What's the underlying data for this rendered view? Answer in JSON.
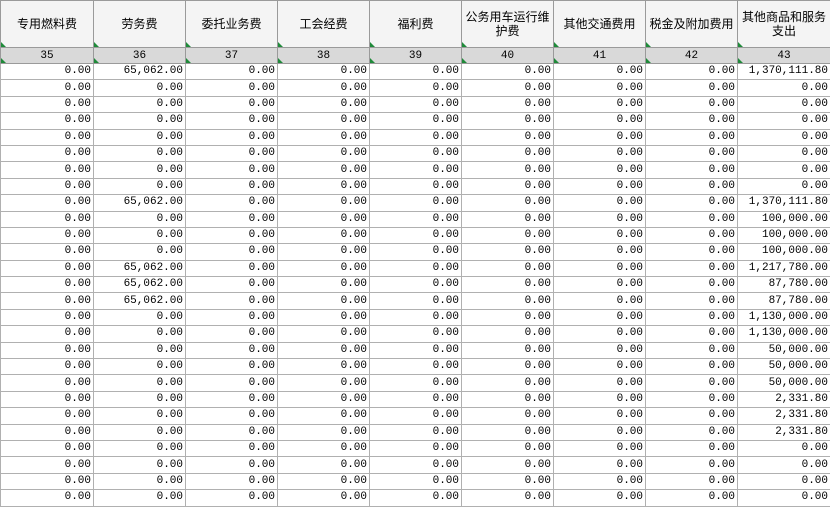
{
  "table": {
    "headers": [
      "专用燃料费",
      "劳务费",
      "委托业务费",
      "工会经费",
      "福利费",
      "公务用车运行维护费",
      "其他交通费用",
      "税金及附加费用",
      "其他商品和服务支出"
    ],
    "numbers": [
      "35",
      "36",
      "37",
      "38",
      "39",
      "40",
      "41",
      "42",
      "43"
    ],
    "rows": [
      [
        "0.00",
        "65,062.00",
        "0.00",
        "0.00",
        "0.00",
        "0.00",
        "0.00",
        "0.00",
        "1,370,111.80"
      ],
      [
        "0.00",
        "0.00",
        "0.00",
        "0.00",
        "0.00",
        "0.00",
        "0.00",
        "0.00",
        "0.00"
      ],
      [
        "0.00",
        "0.00",
        "0.00",
        "0.00",
        "0.00",
        "0.00",
        "0.00",
        "0.00",
        "0.00"
      ],
      [
        "0.00",
        "0.00",
        "0.00",
        "0.00",
        "0.00",
        "0.00",
        "0.00",
        "0.00",
        "0.00"
      ],
      [
        "0.00",
        "0.00",
        "0.00",
        "0.00",
        "0.00",
        "0.00",
        "0.00",
        "0.00",
        "0.00"
      ],
      [
        "0.00",
        "0.00",
        "0.00",
        "0.00",
        "0.00",
        "0.00",
        "0.00",
        "0.00",
        "0.00"
      ],
      [
        "0.00",
        "0.00",
        "0.00",
        "0.00",
        "0.00",
        "0.00",
        "0.00",
        "0.00",
        "0.00"
      ],
      [
        "0.00",
        "0.00",
        "0.00",
        "0.00",
        "0.00",
        "0.00",
        "0.00",
        "0.00",
        "0.00"
      ],
      [
        "0.00",
        "65,062.00",
        "0.00",
        "0.00",
        "0.00",
        "0.00",
        "0.00",
        "0.00",
        "1,370,111.80"
      ],
      [
        "0.00",
        "0.00",
        "0.00",
        "0.00",
        "0.00",
        "0.00",
        "0.00",
        "0.00",
        "100,000.00"
      ],
      [
        "0.00",
        "0.00",
        "0.00",
        "0.00",
        "0.00",
        "0.00",
        "0.00",
        "0.00",
        "100,000.00"
      ],
      [
        "0.00",
        "0.00",
        "0.00",
        "0.00",
        "0.00",
        "0.00",
        "0.00",
        "0.00",
        "100,000.00"
      ],
      [
        "0.00",
        "65,062.00",
        "0.00",
        "0.00",
        "0.00",
        "0.00",
        "0.00",
        "0.00",
        "1,217,780.00"
      ],
      [
        "0.00",
        "65,062.00",
        "0.00",
        "0.00",
        "0.00",
        "0.00",
        "0.00",
        "0.00",
        "87,780.00"
      ],
      [
        "0.00",
        "65,062.00",
        "0.00",
        "0.00",
        "0.00",
        "0.00",
        "0.00",
        "0.00",
        "87,780.00"
      ],
      [
        "0.00",
        "0.00",
        "0.00",
        "0.00",
        "0.00",
        "0.00",
        "0.00",
        "0.00",
        "1,130,000.00"
      ],
      [
        "0.00",
        "0.00",
        "0.00",
        "0.00",
        "0.00",
        "0.00",
        "0.00",
        "0.00",
        "1,130,000.00"
      ],
      [
        "0.00",
        "0.00",
        "0.00",
        "0.00",
        "0.00",
        "0.00",
        "0.00",
        "0.00",
        "50,000.00"
      ],
      [
        "0.00",
        "0.00",
        "0.00",
        "0.00",
        "0.00",
        "0.00",
        "0.00",
        "0.00",
        "50,000.00"
      ],
      [
        "0.00",
        "0.00",
        "0.00",
        "0.00",
        "0.00",
        "0.00",
        "0.00",
        "0.00",
        "50,000.00"
      ],
      [
        "0.00",
        "0.00",
        "0.00",
        "0.00",
        "0.00",
        "0.00",
        "0.00",
        "0.00",
        "2,331.80"
      ],
      [
        "0.00",
        "0.00",
        "0.00",
        "0.00",
        "0.00",
        "0.00",
        "0.00",
        "0.00",
        "2,331.80"
      ],
      [
        "0.00",
        "0.00",
        "0.00",
        "0.00",
        "0.00",
        "0.00",
        "0.00",
        "0.00",
        "2,331.80"
      ],
      [
        "0.00",
        "0.00",
        "0.00",
        "0.00",
        "0.00",
        "0.00",
        "0.00",
        "0.00",
        "0.00"
      ],
      [
        "0.00",
        "0.00",
        "0.00",
        "0.00",
        "0.00",
        "0.00",
        "0.00",
        "0.00",
        "0.00"
      ],
      [
        "0.00",
        "0.00",
        "0.00",
        "0.00",
        "0.00",
        "0.00",
        "0.00",
        "0.00",
        "0.00"
      ],
      [
        "0.00",
        "0.00",
        "0.00",
        "0.00",
        "0.00",
        "0.00",
        "0.00",
        "0.00",
        "0.00"
      ]
    ]
  }
}
